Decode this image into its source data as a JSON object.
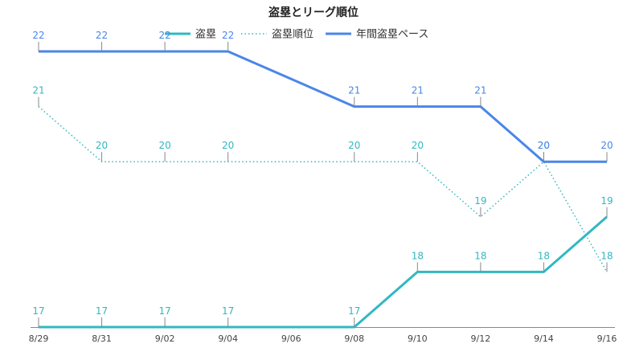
{
  "chart_data": {
    "type": "line",
    "title": "盗塁とリーグ順位",
    "categories": [
      "8/29",
      "8/31",
      "9/02",
      "9/04",
      "9/06",
      "9/08",
      "9/10",
      "9/12",
      "9/14",
      "9/16"
    ],
    "series": [
      {
        "name": "盗塁",
        "color": "#32b8c1",
        "style": "solid",
        "values": [
          17,
          17,
          17,
          17,
          null,
          17,
          18,
          18,
          18,
          19
        ]
      },
      {
        "name": "盗塁順位",
        "color": "#32b8c1",
        "style": "dotted",
        "values": [
          21,
          20,
          20,
          20,
          null,
          20,
          20,
          19,
          20,
          18
        ]
      },
      {
        "name": "年間盗塁ペース",
        "color": "#4a86e8",
        "style": "solid",
        "values": [
          22,
          22,
          22,
          22,
          null,
          21,
          21,
          21,
          20,
          20
        ]
      }
    ],
    "ylim": [
      17,
      22
    ],
    "legend_position": "top-center",
    "grid": false
  }
}
